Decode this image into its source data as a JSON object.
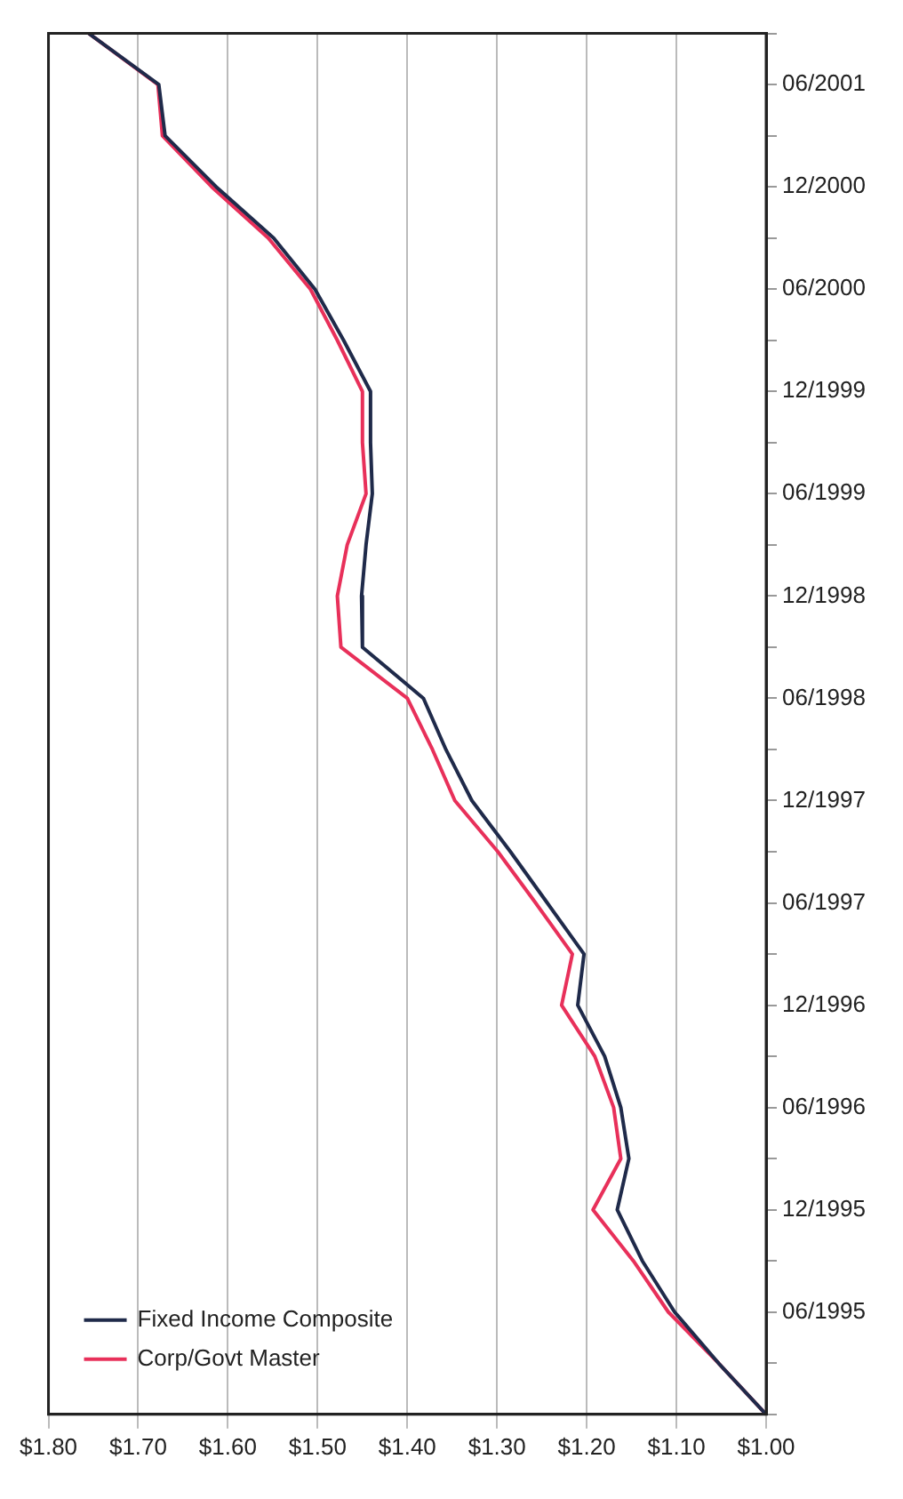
{
  "chart_data": {
    "type": "line",
    "orientation": "horizontal",
    "categories": [
      null,
      "06/2001",
      null,
      "12/2000",
      null,
      "06/2000",
      null,
      "12/1999",
      null,
      "06/1999",
      null,
      "12/1998",
      null,
      "06/1998",
      null,
      "12/1997",
      null,
      "06/1997",
      null,
      "12/1996",
      null,
      "06/1996",
      null,
      "12/1995",
      null,
      "06/1995",
      null,
      null
    ],
    "series": [
      {
        "name": "Fixed Income Composite",
        "color": "#1f2a4a",
        "values": [
          1.755,
          1.677,
          1.67,
          1.613,
          1.549,
          1.503,
          1.471,
          1.441,
          1.441,
          1.439,
          1.446,
          1.451,
          1.45,
          1.382,
          1.357,
          1.328,
          1.285,
          1.244,
          1.203,
          1.21,
          1.18,
          1.162,
          1.153,
          1.166,
          1.138,
          1.102,
          1.053,
          1.0
        ]
      },
      {
        "name": "Corp/Govt Master",
        "color": "#e8305a",
        "values": [
          1.755,
          1.678,
          1.673,
          1.618,
          1.555,
          1.508,
          1.478,
          1.45,
          1.45,
          1.446,
          1.467,
          1.478,
          1.474,
          1.4,
          1.372,
          1.347,
          1.299,
          1.257,
          1.216,
          1.228,
          1.191,
          1.17,
          1.162,
          1.193,
          1.148,
          1.109,
          1.053,
          1.0
        ]
      }
    ],
    "xlim": [
      1.8,
      1.0
    ],
    "xticks": [
      {
        "value": 1.8,
        "label": "$1.80"
      },
      {
        "value": 1.7,
        "label": "$1.70"
      },
      {
        "value": 1.6,
        "label": "$1.60"
      },
      {
        "value": 1.5,
        "label": "$1.50"
      },
      {
        "value": 1.4,
        "label": "$1.40"
      },
      {
        "value": 1.3,
        "label": "$1.30"
      },
      {
        "value": 1.2,
        "label": "$1.20"
      },
      {
        "value": 1.1,
        "label": "$1.10"
      },
      {
        "value": 1.0,
        "label": "$1.00"
      }
    ],
    "grid": "x",
    "legend": "bottom left",
    "marker": "none",
    "line_style": "solid"
  }
}
